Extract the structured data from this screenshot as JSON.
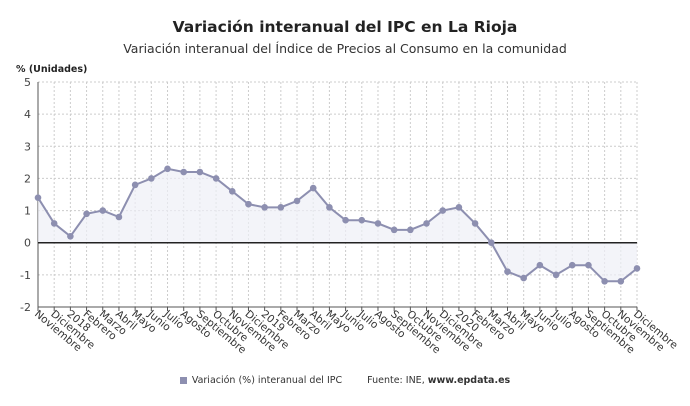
{
  "chart_data": {
    "type": "line",
    "title": "Variación interanual del IPC en La Rioja",
    "subtitle": "Variación interanual del Índice de Precios al Consumo en la comunidad",
    "ylabel": "% (Unidades)",
    "xlabel": "",
    "ylim": [
      -2,
      5
    ],
    "yticks": [
      5,
      4,
      3,
      2,
      1,
      0,
      -1,
      -2
    ],
    "grid": true,
    "legend_placement": "bottom",
    "categories": [
      "Noviembre",
      "Diciembre",
      "2018",
      "Febrero",
      "Marzo",
      "Abril",
      "Mayo",
      "Junio",
      "Julio",
      "Agosto",
      "Septiembre",
      "Octubre",
      "Noviembre",
      "Diciembre",
      "2019",
      "Febrero",
      "Marzo",
      "Abril",
      "Mayo",
      "Junio",
      "Julio",
      "Agosto",
      "Septiembre",
      "Octubre",
      "Noviembre",
      "Diciembre",
      "2020",
      "Febrero",
      "Marzo",
      "Abril",
      "Mayo",
      "Junio",
      "Julio",
      "Agosto",
      "Septiembre",
      "Octubre",
      "Noviembre",
      "Diciembre"
    ],
    "series": [
      {
        "name": "Variación (%) interanual del IPC",
        "color": "#8d8fb0",
        "values": [
          1.4,
          0.6,
          0.2,
          0.9,
          1.0,
          0.8,
          1.8,
          2.0,
          2.3,
          2.2,
          2.2,
          2.0,
          1.6,
          1.2,
          1.1,
          1.1,
          1.3,
          1.7,
          1.1,
          0.7,
          0.7,
          0.6,
          0.4,
          0.4,
          0.6,
          1.0,
          1.1,
          0.6,
          0.0,
          -0.9,
          -1.1,
          -0.7,
          -1.0,
          -0.7,
          -0.7,
          -1.2,
          -1.2,
          -0.8
        ]
      }
    ]
  },
  "legend": {
    "series_label": "Variación (%) interanual del IPC",
    "source_prefix": "Fuente: INE, ",
    "source_site": "www.epdata.es"
  }
}
